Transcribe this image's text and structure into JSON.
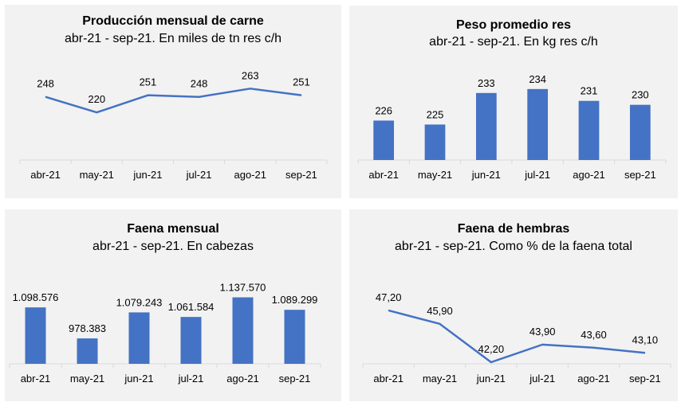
{
  "chart_data": [
    {
      "type": "line",
      "title": "Producción mensual de carne",
      "subtitle": "abr-21 - sep-21. En miles de tn res c/h",
      "categories": [
        "abr-21",
        "may-21",
        "jun-21",
        "jul-21",
        "ago-21",
        "sep-21"
      ],
      "values": [
        248,
        220,
        251,
        248,
        263,
        251
      ],
      "labels": [
        "248",
        "220",
        "251",
        "248",
        "263",
        "251"
      ],
      "ylim": [
        170,
        285
      ],
      "grid": false,
      "color": "#4472c4"
    },
    {
      "type": "bar",
      "title": "Peso promedio res",
      "subtitle": "abr-21 - sep-21. En kg res c/h",
      "categories": [
        "abr-21",
        "may-21",
        "jun-21",
        "jul-21",
        "ago-21",
        "sep-21"
      ],
      "values": [
        226,
        225,
        233,
        234,
        231,
        230
      ],
      "labels": [
        "226",
        "225",
        "233",
        "234",
        "231",
        "230"
      ],
      "ylim": [
        216,
        237
      ],
      "grid": false,
      "color": "#4472c4"
    },
    {
      "type": "bar",
      "title": "Faena mensual",
      "subtitle": "abr-21 - sep-21. En cabezas",
      "categories": [
        "abr-21",
        "may-21",
        "jun-21",
        "jul-21",
        "ago-21",
        "sep-21"
      ],
      "values": [
        1098576,
        978383,
        1079243,
        1061584,
        1137570,
        1089299
      ],
      "labels": [
        "1.098.576",
        "978.383",
        "1.079.243",
        "1.061.584",
        "1.137.570",
        "1.089.299"
      ],
      "ylim": [
        880000,
        1170000
      ],
      "grid": false,
      "color": "#4472c4"
    },
    {
      "type": "line",
      "title": "Faena de hembras",
      "subtitle": "abr-21 - sep-21. Como % de la faena total",
      "categories": [
        "abr-21",
        "may-21",
        "jun-21",
        "jul-21",
        "ago-21",
        "sep-21"
      ],
      "values": [
        47.2,
        45.9,
        42.2,
        43.9,
        43.6,
        43.1
      ],
      "labels": [
        "47,20",
        "45,90",
        "42,20",
        "43,90",
        "43,60",
        "43,10"
      ],
      "ylim": [
        42.2,
        48.5
      ],
      "grid": false,
      "color": "#4472c4"
    }
  ]
}
